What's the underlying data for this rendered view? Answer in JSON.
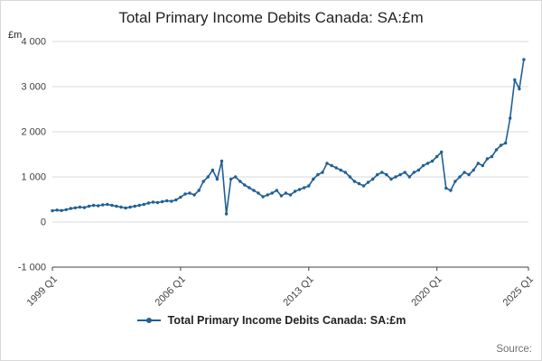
{
  "page": {
    "source_label": "Source:"
  },
  "chart_data": {
    "type": "line",
    "title": "Total Primary Income Debits Canada: SA:£m",
    "unit_label": "£m",
    "legend_label": "Total Primary Income Debits Canada: SA:£m",
    "ylim": [
      -1000,
      4000
    ],
    "y_ticks": [
      4000,
      3000,
      2000,
      1000,
      0,
      -1000
    ],
    "y_tick_labels": [
      "4 000",
      "3 000",
      "2 000",
      "1 000",
      "0",
      "-1 000"
    ],
    "x_tick_labels": [
      "1999 Q1",
      "2006 Q1",
      "2013 Q1",
      "2020 Q1",
      "2025 Q1"
    ],
    "x_tick_quarter_indices": [
      0,
      28,
      56,
      84,
      104
    ],
    "x_quarters_total": 104,
    "x_start_label": "1999 Q1",
    "grid": "horizontal",
    "legend_position": "bottom",
    "colors": {
      "line": "#206095",
      "grid": "#d9d9d9",
      "axis": "#404040",
      "tick_text": "#414042",
      "title_text": "#222222",
      "source_text": "#707070"
    },
    "series": [
      {
        "name": "Total Primary Income Debits Canada: SA:£m",
        "color": "#206095",
        "start": "1999 Q1",
        "values": [
          250,
          265,
          255,
          275,
          300,
          315,
          330,
          320,
          350,
          370,
          360,
          380,
          390,
          370,
          350,
          330,
          310,
          330,
          350,
          370,
          390,
          420,
          440,
          430,
          450,
          470,
          460,
          490,
          550,
          620,
          640,
          600,
          700,
          900,
          1000,
          1150,
          950,
          1350,
          180,
          950,
          1000,
          900,
          820,
          760,
          700,
          640,
          560,
          600,
          640,
          700,
          580,
          640,
          600,
          680,
          720,
          760,
          800,
          950,
          1050,
          1100,
          1300,
          1250,
          1200,
          1150,
          1100,
          1000,
          900,
          850,
          800,
          880,
          950,
          1050,
          1100,
          1050,
          950,
          1000,
          1050,
          1100,
          1000,
          1100,
          1150,
          1250,
          1300,
          1350,
          1450,
          1550,
          750,
          700,
          900,
          1000,
          1100,
          1050,
          1150,
          1300,
          1250,
          1400,
          1450,
          1600,
          1700,
          1750,
          2300,
          3150,
          2950,
          3600
        ]
      }
    ]
  }
}
